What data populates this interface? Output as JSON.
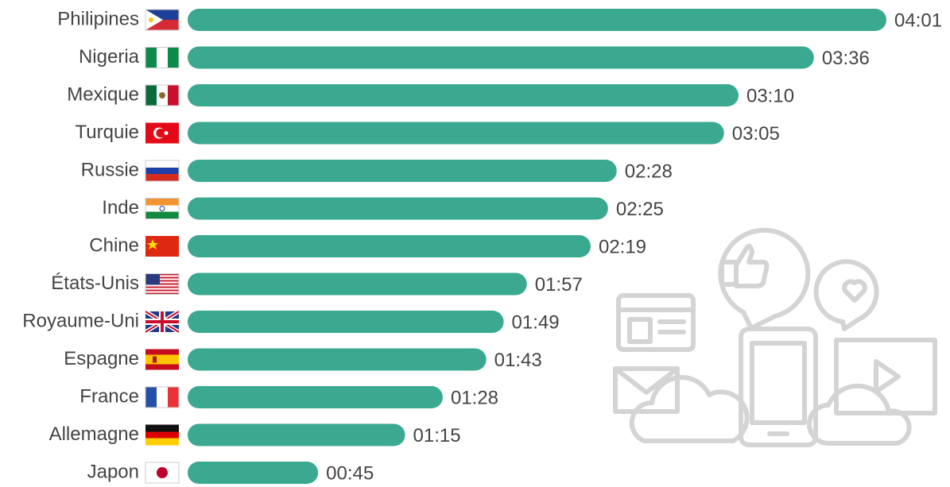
{
  "chart_data": {
    "type": "bar",
    "orientation": "horizontal",
    "color": "#3aa98f",
    "categories": [
      "Philipines",
      "Nigeria",
      "Mexique",
      "Turquie",
      "Russie",
      "Inde",
      "Chine",
      "États-Unis",
      "Royaume-Uni",
      "Espagne",
      "France",
      "Allemagne",
      "Japon"
    ],
    "values": [
      241,
      216,
      190,
      185,
      148,
      145,
      139,
      117,
      109,
      103,
      88,
      75,
      45
    ],
    "value_labels": [
      "04:01",
      "03:36",
      "03:10",
      "03:05",
      "02:28",
      "02:25",
      "02:19",
      "01:57",
      "01:49",
      "01:43",
      "01:28",
      "01:15",
      "00:45"
    ]
  }
}
